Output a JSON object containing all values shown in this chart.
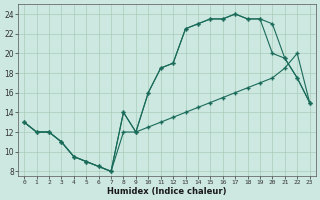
{
  "xlabel": "Humidex (Indice chaleur)",
  "bg_color": "#cce8e0",
  "grid_color": "#aaccbb",
  "line_color": "#1a6b5a",
  "xlim": [
    -0.5,
    23.5
  ],
  "ylim": [
    7.5,
    25.0
  ],
  "xticks": [
    0,
    1,
    2,
    3,
    4,
    5,
    6,
    7,
    8,
    9,
    10,
    11,
    12,
    13,
    14,
    15,
    16,
    17,
    18,
    19,
    20,
    21,
    22,
    23
  ],
  "yticks": [
    8,
    10,
    12,
    14,
    16,
    18,
    20,
    22,
    24
  ],
  "line1_x": [
    0,
    1,
    2,
    3,
    4,
    5,
    6,
    7,
    8,
    9,
    10,
    11,
    12,
    13,
    14,
    15,
    16,
    17,
    18,
    19,
    20,
    21,
    22,
    23
  ],
  "line1_y": [
    13,
    12,
    12,
    11,
    9.5,
    9,
    8.5,
    8,
    12,
    12,
    12.5,
    13,
    13.5,
    14,
    14.5,
    15,
    15.5,
    16,
    16.5,
    17,
    17.5,
    18.5,
    20,
    15
  ],
  "line2_x": [
    0,
    1,
    2,
    3,
    4,
    5,
    6,
    7,
    8,
    9,
    10,
    11,
    12,
    13,
    14,
    15,
    16,
    17,
    18,
    19,
    20,
    21,
    22,
    23
  ],
  "line2_y": [
    13,
    12,
    12,
    11,
    9.5,
    9,
    8.5,
    8,
    14,
    12,
    16,
    18.5,
    19,
    22.5,
    23,
    23.5,
    23.5,
    24,
    23.5,
    23.5,
    23,
    19.5,
    17.5,
    15
  ],
  "line3_x": [
    0,
    1,
    2,
    3,
    4,
    5,
    6,
    7,
    8,
    9,
    10,
    11,
    12,
    13,
    14,
    15,
    16,
    17,
    18,
    19,
    20,
    21,
    22,
    23
  ],
  "line3_y": [
    13,
    12,
    12,
    11,
    9.5,
    9,
    8.5,
    8,
    14,
    12,
    16,
    18.5,
    19,
    22.5,
    23,
    23.5,
    23.5,
    24,
    23.5,
    23.5,
    20,
    19.5,
    17.5,
    15
  ]
}
